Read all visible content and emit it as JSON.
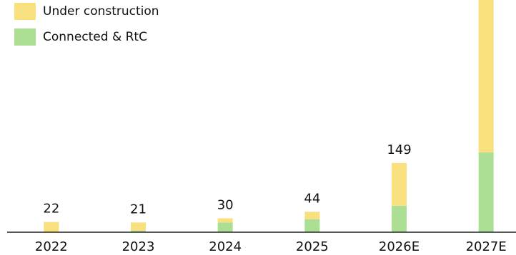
{
  "chart_data": {
    "type": "stacked-bar",
    "categories": [
      "2022",
      "2023",
      "2024",
      "2025",
      "2026E",
      "2027E"
    ],
    "category_label_colors": [
      "#111111",
      "#111111",
      "#111111",
      "#111111",
      "#8a8a8a",
      "#8a8a8a"
    ],
    "series": [
      {
        "name": "Connected & RtC",
        "color": "#acdf94",
        "values": [
          0,
          3,
          21,
          28,
          57,
          172
        ]
      },
      {
        "name": "Under construction",
        "color": "#f9e07f",
        "values": [
          22,
          18,
          9,
          16,
          92,
          350
        ]
      }
    ],
    "totals": [
      22,
      21,
      30,
      44,
      149,
      null
    ],
    "ylim": [
      0,
      500
    ]
  }
}
